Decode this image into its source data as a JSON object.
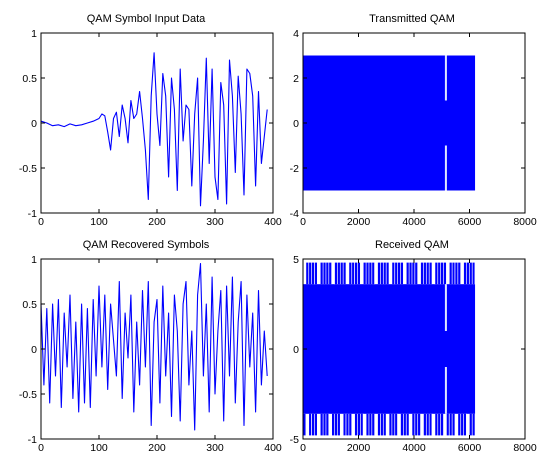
{
  "chart_data": [
    {
      "type": "line",
      "title": "QAM Symbol Input Data",
      "xlabel": "",
      "ylabel": "",
      "xlim": [
        0,
        400
      ],
      "ylim": [
        -1,
        1
      ],
      "xticks": [
        0,
        100,
        200,
        300,
        400
      ],
      "yticks": [
        -1,
        -0.5,
        0,
        0.5,
        1
      ],
      "xtick_labels": [
        "0",
        "100",
        "200",
        "300",
        "400"
      ],
      "ytick_labels": [
        "-1",
        "-0.5",
        "0",
        "0.5",
        "1"
      ],
      "grid": false,
      "color": "#0000ff",
      "series": [
        {
          "x": [
            0,
            10,
            20,
            30,
            40,
            50,
            60,
            70,
            80,
            90,
            100,
            105,
            110,
            115,
            120,
            125,
            130,
            135,
            140,
            145,
            150,
            155,
            160,
            165,
            170,
            175,
            180,
            185,
            190,
            195,
            200,
            205,
            210,
            215,
            220,
            225,
            230,
            235,
            240,
            245,
            250,
            255,
            260,
            265,
            270,
            275,
            280,
            285,
            290,
            295,
            300,
            305,
            310,
            315,
            320,
            325,
            330,
            335,
            340,
            345,
            350,
            355,
            360,
            365,
            370,
            375,
            380,
            385,
            390
          ],
          "y": [
            0.02,
            0.0,
            -0.03,
            -0.02,
            -0.04,
            -0.01,
            -0.03,
            -0.02,
            0.0,
            0.02,
            0.05,
            0.1,
            0.08,
            -0.1,
            -0.3,
            0.05,
            0.12,
            -0.15,
            0.2,
            0.05,
            -0.22,
            0.25,
            0.05,
            0.1,
            0.35,
            0.05,
            -0.3,
            -0.85,
            0.3,
            0.78,
            0.1,
            -0.25,
            0.55,
            0.3,
            -0.6,
            0.5,
            0.15,
            -0.75,
            0.6,
            -0.2,
            0.2,
            0.15,
            -0.7,
            0.1,
            0.5,
            -0.92,
            -0.2,
            0.72,
            -0.45,
            0.6,
            -0.6,
            -0.85,
            0.45,
            0.2,
            -0.9,
            0.7,
            0.3,
            -0.55,
            0.52,
            0.1,
            -0.8,
            0.6,
            0.55,
            0.3,
            -0.7,
            0.35,
            -0.45,
            -0.15,
            0.15
          ]
        }
      ]
    },
    {
      "type": "area",
      "title": "Transmitted QAM",
      "xlabel": "",
      "ylabel": "",
      "xlim": [
        0,
        8000
      ],
      "ylim": [
        -4,
        4
      ],
      "xticks": [
        0,
        2000,
        4000,
        6000,
        8000
      ],
      "yticks": [
        -4,
        -2,
        0,
        2,
        4
      ],
      "xtick_labels": [
        "0",
        "2000",
        "4000",
        "6000",
        "8000"
      ],
      "ytick_labels": [
        "-4",
        "-2",
        "0",
        "2",
        "4"
      ],
      "grid": false,
      "color": "#0000ff",
      "series": [
        {
          "x": [
            0,
            6200
          ],
          "upper": [
            3,
            3
          ],
          "lower": [
            -3,
            -3
          ]
        }
      ],
      "gaps": [
        {
          "x": 5150,
          "upper": [
            3,
            1
          ],
          "lower": [
            -1,
            -3
          ]
        }
      ]
    },
    {
      "type": "line",
      "title": "QAM Recovered Symbols",
      "xlabel": "",
      "ylabel": "",
      "xlim": [
        0,
        400
      ],
      "ylim": [
        -1,
        1
      ],
      "xticks": [
        0,
        100,
        200,
        300,
        400
      ],
      "yticks": [
        -1,
        -0.5,
        0,
        0.5,
        1
      ],
      "xtick_labels": [
        "0",
        "100",
        "200",
        "300",
        "400"
      ],
      "ytick_labels": [
        "-1",
        "-0.5",
        "0",
        "0.5",
        "1"
      ],
      "grid": false,
      "color": "#0000ff",
      "series": [
        {
          "x": [
            0,
            5,
            10,
            15,
            20,
            25,
            30,
            35,
            40,
            45,
            50,
            55,
            60,
            65,
            70,
            75,
            80,
            85,
            90,
            95,
            100,
            105,
            110,
            115,
            120,
            125,
            130,
            135,
            140,
            145,
            150,
            155,
            160,
            165,
            170,
            175,
            180,
            185,
            190,
            195,
            200,
            205,
            210,
            215,
            220,
            225,
            230,
            235,
            240,
            245,
            250,
            255,
            260,
            265,
            270,
            275,
            280,
            285,
            290,
            295,
            300,
            305,
            310,
            315,
            320,
            325,
            330,
            335,
            340,
            345,
            350,
            355,
            360,
            365,
            370,
            375,
            380,
            385,
            390
          ],
          "y": [
            0.5,
            -0.4,
            0.45,
            -0.6,
            0.5,
            -0.3,
            0.55,
            -0.65,
            0.4,
            -0.2,
            0.6,
            -0.55,
            0.3,
            -0.7,
            0.5,
            -0.6,
            0.45,
            -0.65,
            0.55,
            -0.3,
            0.7,
            -0.2,
            0.6,
            -0.45,
            0.5,
            0.1,
            -0.3,
            0.75,
            -0.55,
            0.4,
            -0.1,
            0.6,
            -0.7,
            0.3,
            -0.4,
            0.65,
            -0.2,
            0.75,
            -0.85,
            0.3,
            0.55,
            -0.6,
            0.7,
            -0.3,
            0.4,
            -0.75,
            0.6,
            0.2,
            -0.8,
            0.5,
            0.75,
            -0.4,
            0.2,
            -0.9,
            0.6,
            0.95,
            -0.3,
            0.5,
            -0.7,
            0.8,
            -0.5,
            0.2,
            0.65,
            -0.8,
            0.7,
            -0.3,
            0.8,
            -0.6,
            0.3,
            0.75,
            -0.85,
            0.6,
            -0.2,
            0.4,
            -0.7,
            0.65,
            -0.4,
            0.2,
            -0.3
          ]
        }
      ]
    },
    {
      "type": "area",
      "title": "Received QAM",
      "xlabel": "",
      "ylabel": "",
      "xlim": [
        0,
        8000
      ],
      "ylim": [
        -5,
        5
      ],
      "xticks": [
        0,
        2000,
        4000,
        6000,
        8000
      ],
      "yticks": [
        -5,
        0,
        5
      ],
      "xtick_labels": [
        "0",
        "2000",
        "4000",
        "6000",
        "8000"
      ],
      "ytick_labels": [
        "-5",
        "0",
        "5"
      ],
      "grid": false,
      "color": "#0000ff",
      "series": [
        {
          "x": [
            0,
            6200
          ],
          "upper": [
            3.6,
            3.6
          ],
          "lower": [
            -3.6,
            -3.6
          ],
          "peak_upper": 4.8,
          "peak_lower": -4.8
        }
      ],
      "gaps": [
        {
          "x": 5150,
          "upper": [
            3.6,
            1
          ],
          "lower": [
            -1,
            -3.6
          ]
        }
      ]
    }
  ]
}
